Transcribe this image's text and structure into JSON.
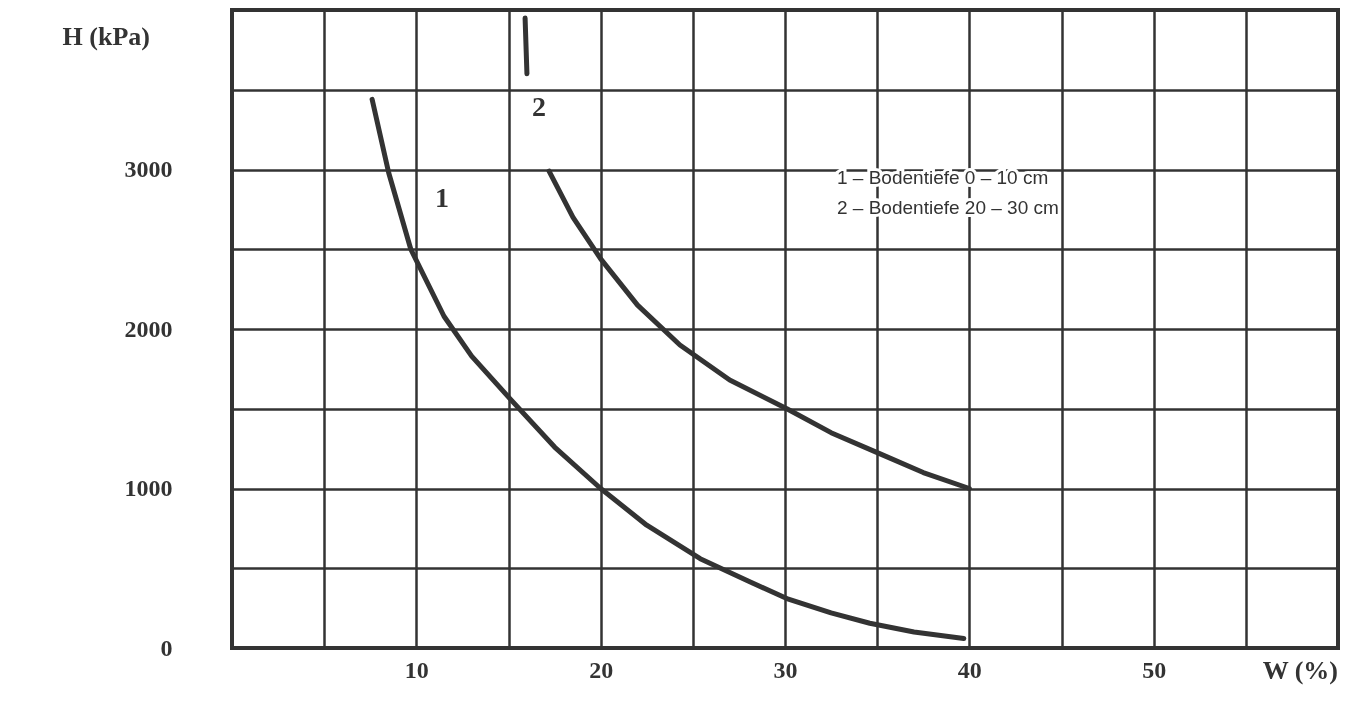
{
  "chart_data": {
    "type": "line",
    "xlabel": "W (%)",
    "ylabel": "H (kPa)",
    "series": [
      {
        "name": "1",
        "color": "#333333",
        "x": [
          7.6,
          8.5,
          9.7,
          11.5,
          13.0,
          15.1,
          17.5,
          20.0,
          22.5,
          25.4,
          28.0,
          30.1,
          32.5,
          34.6,
          37.0,
          39.7
        ],
        "values": [
          3440,
          2980,
          2500,
          2080,
          1830,
          1560,
          1260,
          1000,
          770,
          560,
          420,
          310,
          220,
          155,
          100,
          60
        ]
      },
      {
        "name": "2",
        "color": "#333333",
        "x": [
          15.9,
          16.0,
          null,
          17.2,
          18.5,
          20.0,
          22.0,
          24.3,
          27.0,
          30.1,
          32.5,
          35.1,
          37.5,
          40.0
        ],
        "values": [
          3950,
          3600,
          null,
          2990,
          2700,
          2440,
          2150,
          1900,
          1680,
          1500,
          1350,
          1220,
          1100,
          1000
        ]
      }
    ],
    "annotations": [
      "1 – Bodentiefe   0 – 10 cm",
      "2 – Bodentiefe 20 – 30 cm"
    ],
    "xlim": [
      0,
      60
    ],
    "ylim": [
      0,
      4000
    ],
    "xticks": [
      {
        "value": 0,
        "label": null
      },
      {
        "value": 5,
        "label": null
      },
      10,
      {
        "value": 15,
        "label": null
      },
      20,
      {
        "value": 25,
        "label": null
      },
      30,
      {
        "value": 35,
        "label": null
      },
      40,
      {
        "value": 45,
        "label": null
      },
      50,
      {
        "value": 55,
        "label": null
      },
      {
        "value": 60,
        "label": null
      }
    ],
    "yticks": [
      0,
      {
        "value": 500,
        "label": null
      },
      1000,
      {
        "value": 1500,
        "label": null
      },
      2000,
      {
        "value": 2500,
        "label": null
      },
      3000,
      {
        "value": 3500,
        "label": null
      },
      {
        "value": 4000,
        "label": null
      }
    ],
    "grid": true,
    "line_style": "solid",
    "marker": "none"
  }
}
